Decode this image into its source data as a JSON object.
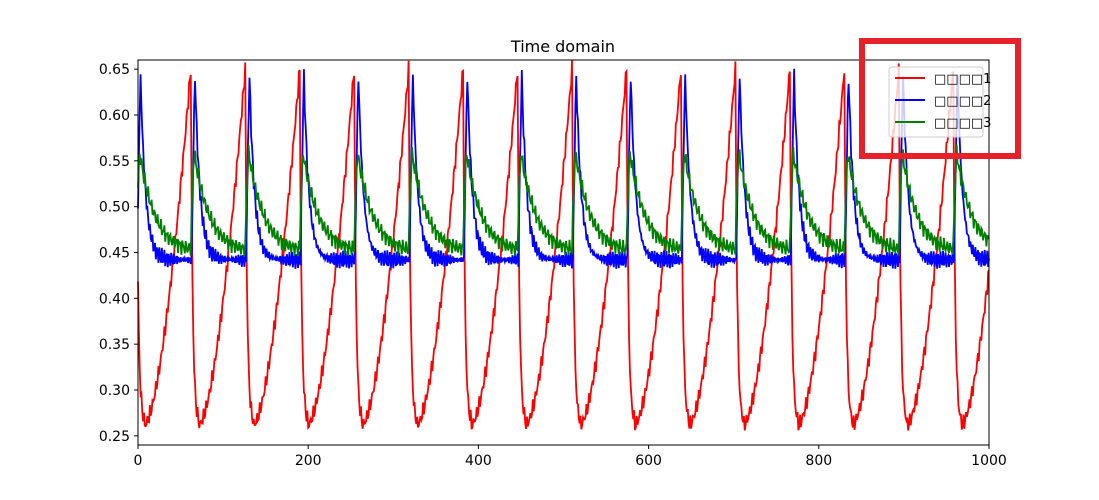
{
  "chart_data": {
    "type": "line",
    "title": "Time domain",
    "xlabel": "",
    "ylabel": "",
    "xlim": [
      0,
      1000
    ],
    "ylim": [
      0.24,
      0.66
    ],
    "xticks": [
      0,
      200,
      400,
      600,
      800,
      1000
    ],
    "xtick_labels": [
      "0",
      "200",
      "400",
      "600",
      "800",
      "1000"
    ],
    "yticks": [
      0.25,
      0.3,
      0.35,
      0.4,
      0.45,
      0.5,
      0.55,
      0.6,
      0.65
    ],
    "ytick_labels": [
      "0.25",
      "0.30",
      "0.35",
      "0.40",
      "0.45",
      "0.50",
      "0.55",
      "0.60",
      "0.65"
    ],
    "grid": false,
    "legend_position": "top-right",
    "period": 64,
    "n_points": 1000,
    "series": [
      {
        "name": "□□□□1",
        "color": "#ff0000",
        "peak_phase": 62,
        "peak_value": 0.65,
        "trough_value": 0.262,
        "min_between_peaks_phase": 12,
        "shape": "sawtooth-rise-then-sharp-drop"
      },
      {
        "name": "□□□□2",
        "color": "#0000ff",
        "peak_phase": 3,
        "peak_value": 0.642,
        "trough_value": 0.43,
        "shape": "sharp-spike-then-decay"
      },
      {
        "name": "□□□□3",
        "color": "#008000",
        "peak_phase": 3,
        "peak_value": 0.553,
        "trough_value": 0.45,
        "shape": "rounded-peak-then-slow-decay"
      }
    ]
  },
  "annotation": {
    "color": "#e8202a",
    "label": "legend-highlight-box"
  }
}
